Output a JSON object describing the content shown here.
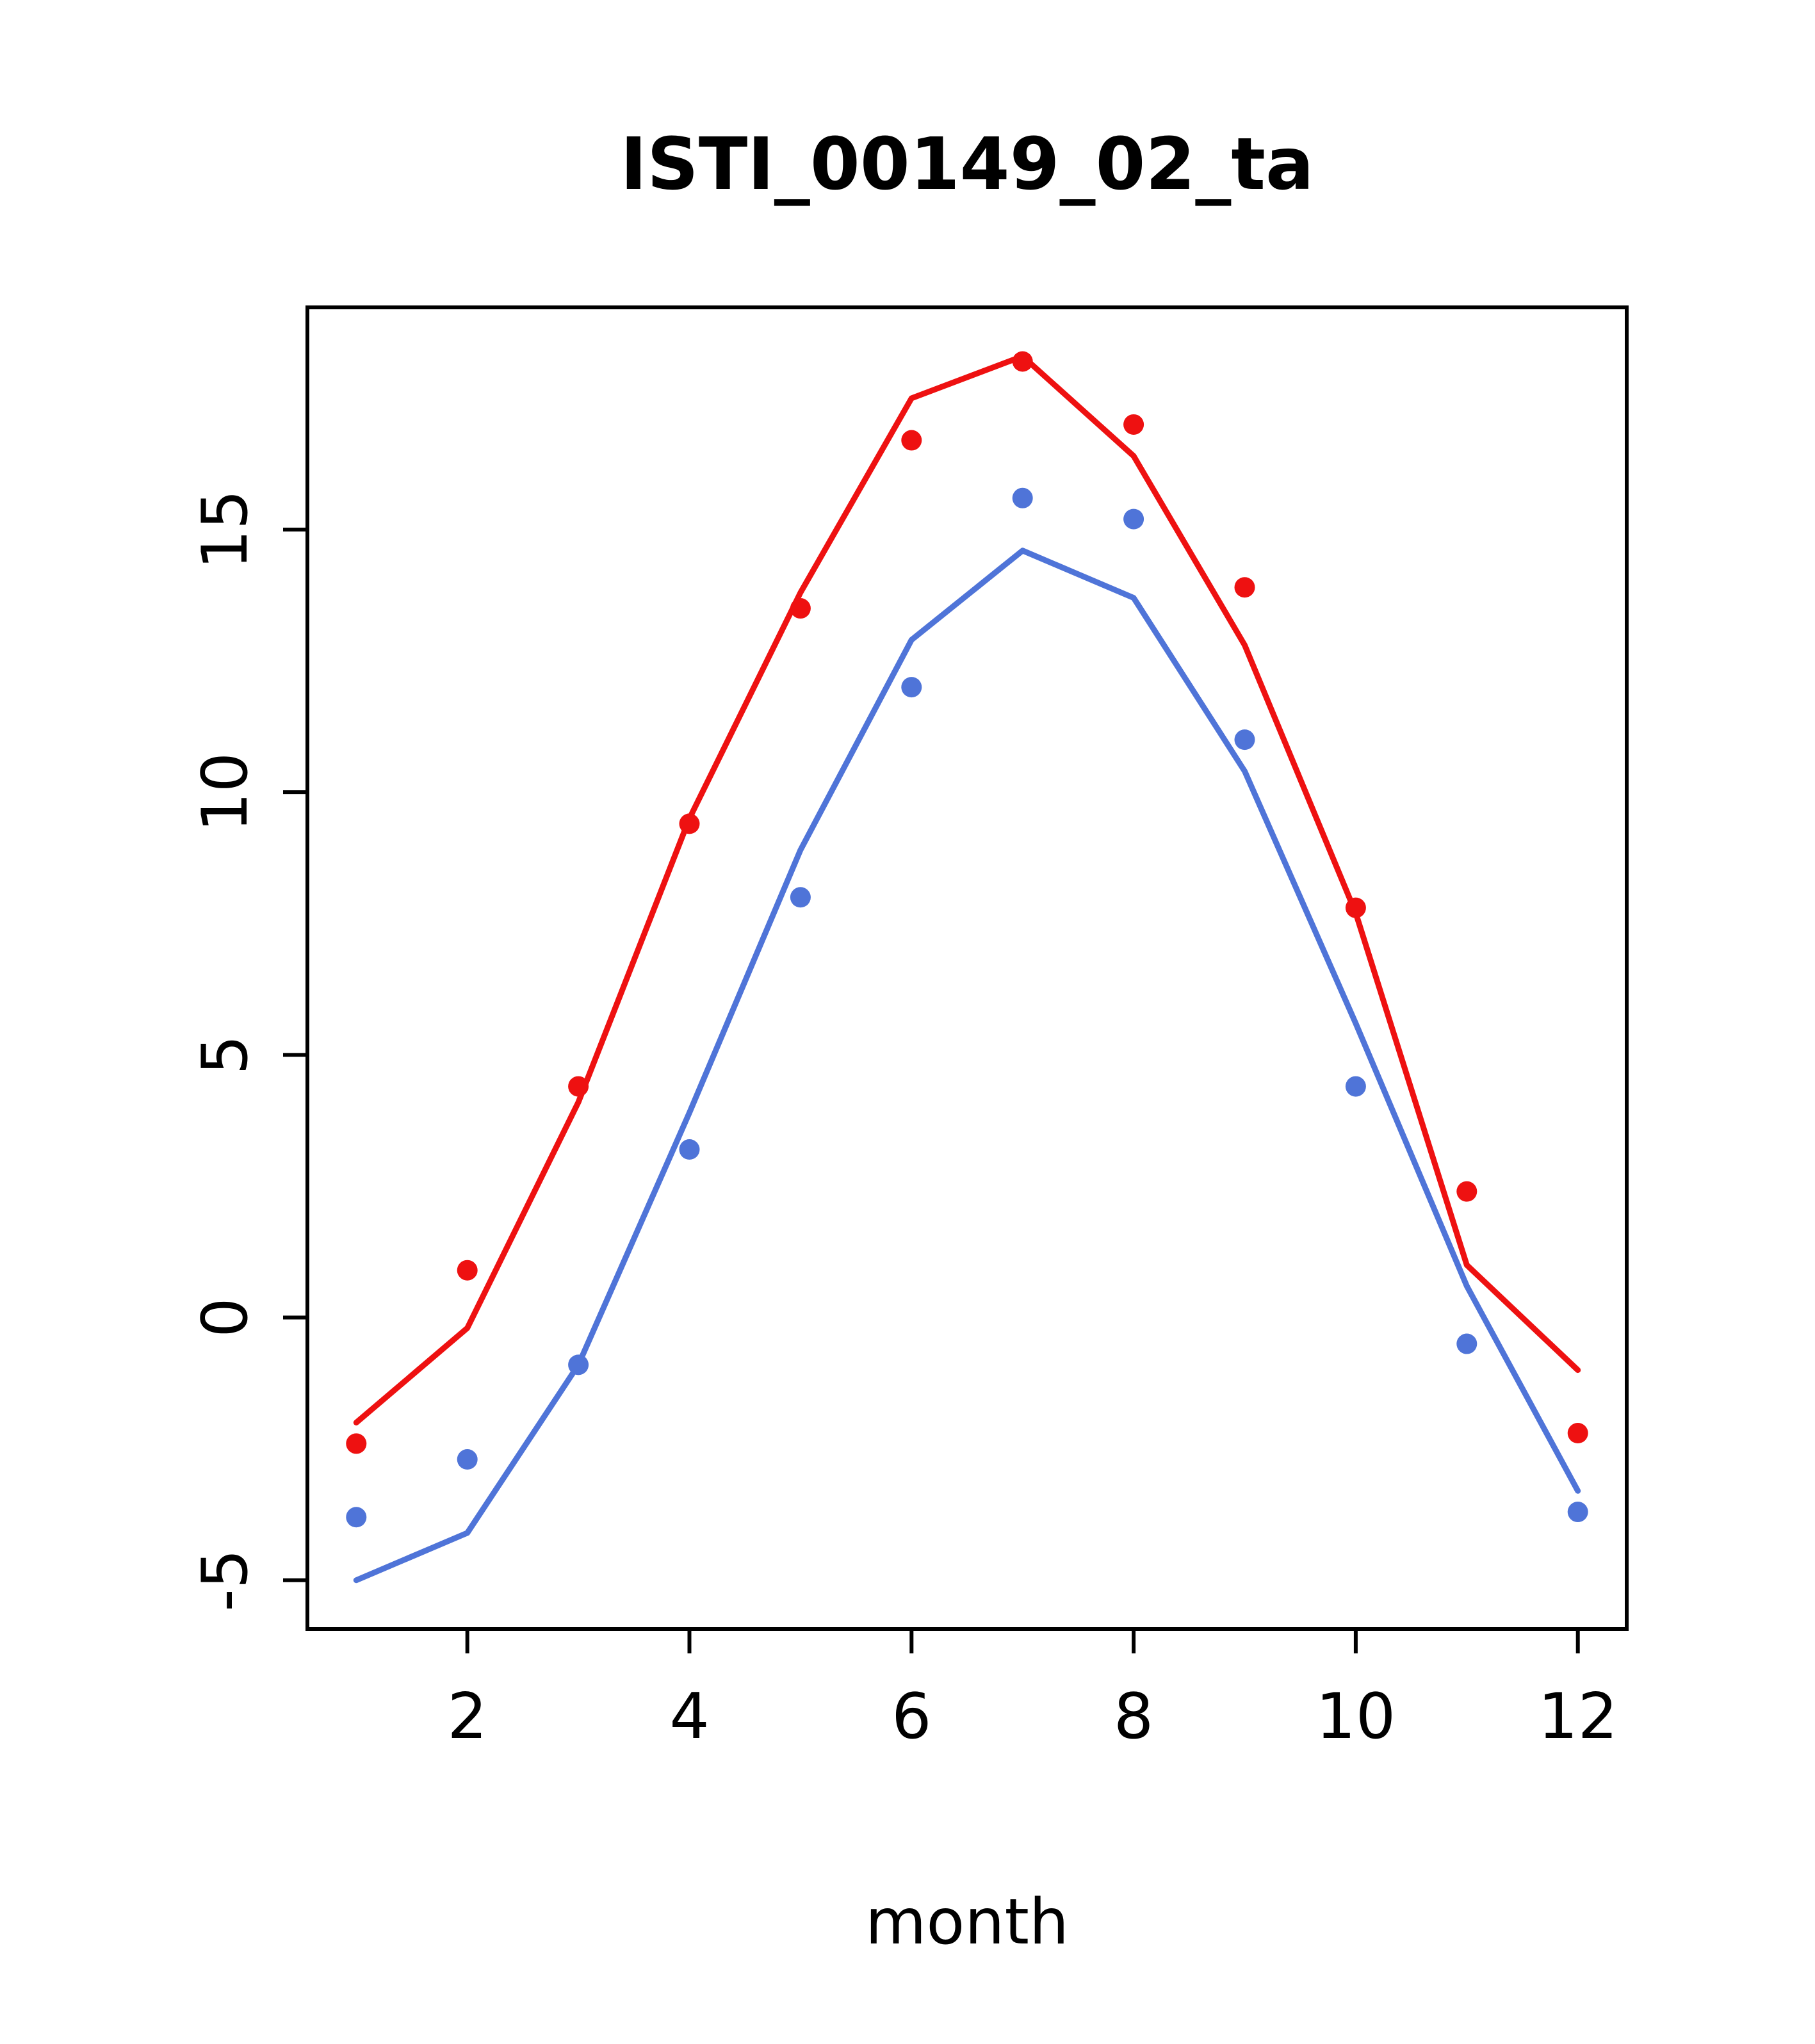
{
  "page": {
    "background": "#ffffff",
    "axis_color": "#000000"
  },
  "chart_data": {
    "type": "line",
    "title": "ISTI_00149_02_ta",
    "xlabel": "month",
    "ylabel": "",
    "x": [
      1,
      2,
      3,
      4,
      5,
      6,
      7,
      8,
      9,
      10,
      11,
      12
    ],
    "xticks": [
      2,
      4,
      6,
      8,
      10,
      12
    ],
    "yticks": [
      -5,
      0,
      5,
      10,
      15
    ],
    "xlim": [
      0.56,
      12.44
    ],
    "ylim": [
      -5.93,
      19.23
    ],
    "grid": false,
    "legend": "none",
    "series": [
      {
        "name": "red-line",
        "kind": "line",
        "color": "#ee1111",
        "values": [
          -2.0,
          -0.2,
          4.1,
          9.5,
          13.8,
          17.5,
          18.3,
          16.4,
          12.8,
          7.7,
          1.0,
          -1.0
        ]
      },
      {
        "name": "red-points",
        "kind": "scatter",
        "color": "#ee1111",
        "values": [
          -2.4,
          0.9,
          4.4,
          9.4,
          13.5,
          16.7,
          18.2,
          17.0,
          13.9,
          7.8,
          2.4,
          -2.2
        ]
      },
      {
        "name": "blue-line",
        "kind": "line",
        "color": "#4f74d8",
        "values": [
          -5.0,
          -4.1,
          -0.9,
          3.9,
          8.9,
          12.9,
          14.6,
          13.7,
          10.4,
          5.6,
          0.6,
          -3.3
        ]
      },
      {
        "name": "blue-points",
        "kind": "scatter",
        "color": "#4f74d8",
        "values": [
          -3.8,
          -2.7,
          -0.9,
          3.2,
          8.0,
          12.0,
          15.6,
          15.2,
          11.0,
          4.4,
          -0.5,
          -3.7
        ]
      }
    ]
  }
}
